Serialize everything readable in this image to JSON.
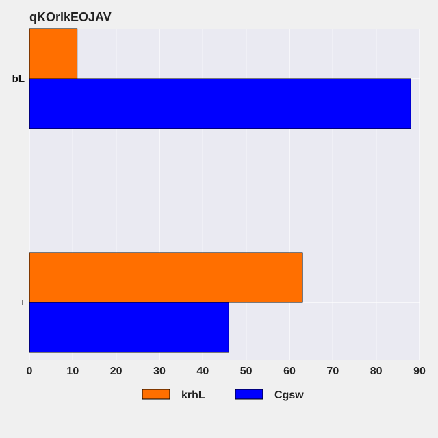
{
  "chart_data": {
    "type": "bar",
    "orientation": "horizontal",
    "title": "qKOrlkEOJAV",
    "xlabel": "",
    "ylabel": "",
    "categories": [
      "bL",
      "T"
    ],
    "series": [
      {
        "name": "krhL",
        "color": "#ff6f00",
        "values": [
          11,
          63
        ]
      },
      {
        "name": "Cgsw",
        "color": "#0000ff",
        "values": [
          88,
          46
        ]
      }
    ],
    "xlim": [
      0,
      90
    ],
    "x_ticks": [
      0,
      10,
      20,
      30,
      40,
      50,
      60,
      70,
      80,
      90
    ],
    "grid": true,
    "legend_position": "bottom-center",
    "plot_background": "#eaeaf2",
    "figure_background": "#f0f0f0"
  }
}
